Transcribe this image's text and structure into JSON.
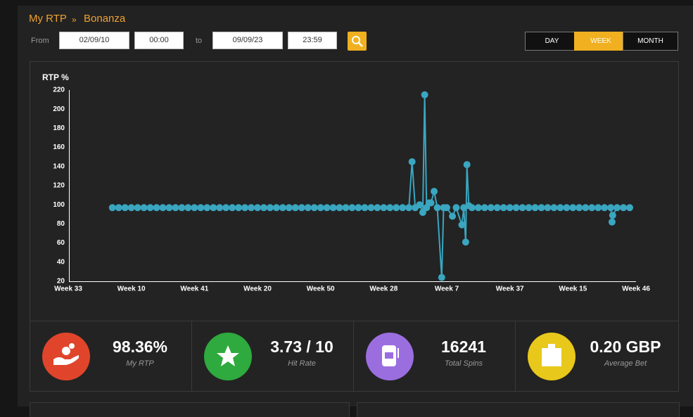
{
  "header": {
    "section": "My RTP",
    "separator": "»",
    "game": "Bonanza"
  },
  "filters": {
    "from_label": "From",
    "from_date": "02/09/10",
    "from_time": "00:00",
    "to_label": "to",
    "to_date": "09/09/23",
    "to_time": "23:59"
  },
  "periods": [
    "DAY",
    "WEEK",
    "MONTH"
  ],
  "active_period_index": 1,
  "chart_data": {
    "type": "line",
    "y_label": "RTP %",
    "color": "#3aa6c0",
    "x": [
      0.7,
      0.8,
      0.9,
      1,
      1.1,
      1.2,
      1.3,
      1.4,
      1.5,
      1.6,
      1.7,
      1.8,
      1.9,
      2,
      2.1,
      2.2,
      2.3,
      2.4,
      2.5,
      2.6,
      2.7,
      2.8,
      2.9,
      3,
      3.1,
      3.2,
      3.3,
      3.4,
      3.5,
      3.6,
      3.7,
      3.8,
      3.9,
      4,
      4.1,
      4.2,
      4.3,
      4.4,
      4.5,
      4.6,
      4.7,
      4.8,
      4.9,
      5,
      5.1,
      5.2,
      5.3,
      5.4,
      5.45,
      5.5,
      5.57,
      5.62,
      5.65,
      5.68,
      5.72,
      5.75,
      5.8,
      5.85,
      5.92,
      5.95,
      6,
      6.09,
      6.15,
      6.24,
      6.27,
      6.3,
      6.32,
      6.35,
      6.4,
      6.5,
      6.6,
      6.7,
      6.8,
      6.9,
      7,
      7.1,
      7.2,
      7.3,
      7.4,
      7.5,
      7.6,
      7.7,
      7.8,
      7.9,
      8,
      8.1,
      8.2,
      8.3,
      8.4,
      8.5,
      8.6,
      8.62,
      8.63,
      8.7,
      8.8,
      8.9
    ],
    "values": [
      97,
      97,
      97,
      97,
      97,
      97,
      97,
      97,
      97,
      97,
      97,
      97,
      97,
      97,
      97,
      97,
      97,
      97,
      97,
      97,
      97,
      97,
      97,
      97,
      97,
      97,
      97,
      97,
      97,
      97,
      97,
      97,
      97,
      97,
      97,
      97,
      97,
      97,
      97,
      97,
      97,
      97,
      97,
      97,
      97,
      97,
      97,
      97,
      145,
      97,
      100,
      92,
      215,
      97,
      102,
      102,
      114,
      97,
      24,
      97,
      97,
      88,
      97,
      79,
      97,
      61,
      142,
      99,
      97,
      97,
      97,
      97,
      97,
      97,
      97,
      97,
      97,
      97,
      97,
      97,
      97,
      97,
      97,
      97,
      97,
      97,
      97,
      97,
      97,
      97,
      97,
      82,
      89,
      97,
      97,
      97
    ],
    "xlim": [
      0,
      9
    ],
    "xticks": [
      {
        "value": 0,
        "label": "Week 33"
      },
      {
        "value": 1,
        "label": "Week 10"
      },
      {
        "value": 2,
        "label": "Week 41"
      },
      {
        "value": 3,
        "label": "Week 20"
      },
      {
        "value": 4,
        "label": "Week 50"
      },
      {
        "value": 5,
        "label": "Week 28"
      },
      {
        "value": 6,
        "label": "Week 7"
      },
      {
        "value": 7,
        "label": "Week 37"
      },
      {
        "value": 8,
        "label": "Week 15"
      },
      {
        "value": 9,
        "label": "Week 46"
      }
    ],
    "ylim": [
      20,
      220
    ],
    "yticks": [
      20,
      40,
      60,
      80,
      100,
      120,
      140,
      160,
      180,
      200,
      220
    ]
  },
  "stats": [
    {
      "value": "98.36%",
      "label": "My RTP",
      "color": "#e0452b"
    },
    {
      "value": "3.73 / 10",
      "label": "Hit Rate",
      "color": "#2eaa3e"
    },
    {
      "value": "16241",
      "label": "Total Spins",
      "color": "#9b6ee0"
    },
    {
      "value": "0.20 GBP",
      "label": "Average Bet",
      "color": "#e8c81a"
    }
  ]
}
